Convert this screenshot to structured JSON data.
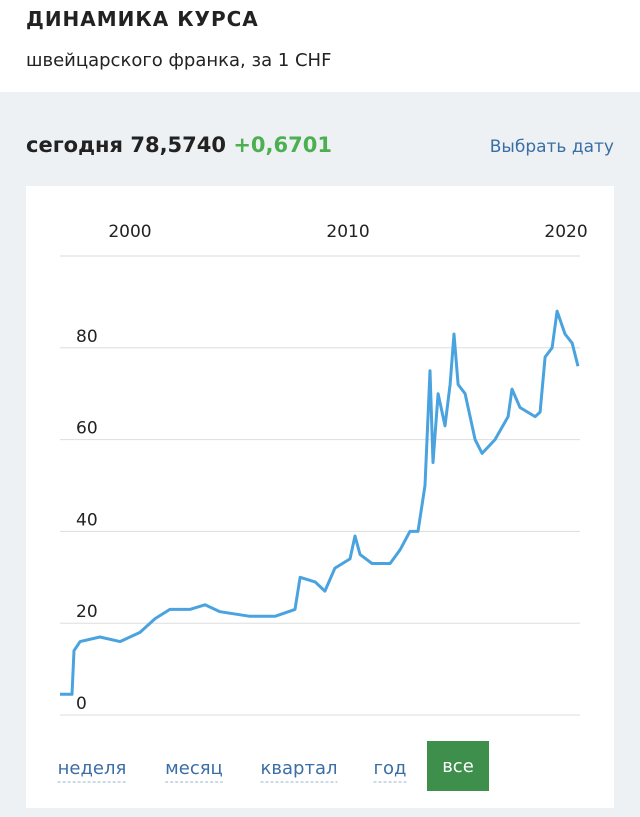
{
  "header": {
    "title": "ДИНАМИКА КУРСА",
    "subtitle": "швейцарского франка, за 1 CHF"
  },
  "today": {
    "label": "сегодня",
    "rate": "78,5740",
    "change": "+0,6701",
    "pick_date": "Выбрать дату"
  },
  "chart_data": {
    "type": "line",
    "x": [
      1996.79,
      1997.34,
      1997.43,
      1997.71,
      1998.62,
      1999.54,
      2000.46,
      2001.15,
      2001.83,
      2002.75,
      2003.44,
      2004.13,
      2005.5,
      2006.65,
      2007.57,
      2007.8,
      2008.49,
      2008.94,
      2009.4,
      2010.09,
      2010.32,
      2010.55,
      2011.1,
      2011.93,
      2012.39,
      2012.84,
      2013.21,
      2013.53,
      2013.76,
      2013.9,
      2014.13,
      2014.45,
      2014.68,
      2014.86,
      2015.05,
      2015.37,
      2015.83,
      2016.15,
      2016.74,
      2017.34,
      2017.52,
      2017.89,
      2018.58,
      2018.81,
      2019.04,
      2019.36,
      2019.59,
      2019.95,
      2020.28,
      2020.55
    ],
    "series": [
      {
        "color": "#4aa3df",
        "values": [
          4.5,
          4.5,
          14,
          16,
          17,
          16,
          18,
          21,
          23,
          23,
          24,
          22.5,
          21.5,
          21.5,
          23,
          30,
          29,
          27,
          32,
          34,
          39,
          35,
          33,
          33,
          36,
          40,
          40,
          50,
          75,
          55,
          70,
          63,
          72,
          83,
          72,
          70,
          60,
          57,
          60,
          65,
          71,
          67,
          65,
          66,
          78,
          80,
          88,
          83,
          81,
          76
        ]
      }
    ],
    "xlim": [
      1996.79,
      2020.64
    ],
    "xticks": [
      2000,
      2010,
      2020
    ],
    "ylim": [
      0,
      100
    ],
    "yticks": [
      0,
      20,
      40,
      60,
      80
    ],
    "grid": true
  },
  "tabs": [
    "неделя",
    "месяц",
    "квартал",
    "год",
    "все"
  ],
  "active_tab": 4
}
